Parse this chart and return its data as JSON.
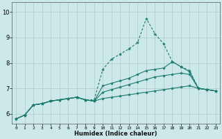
{
  "bg_color": "#cce8e8",
  "grid_color": "#aacccc",
  "line_color": "#1a7a6e",
  "xlabel": "Humidex (Indice chaleur)",
  "xlim": [
    -0.5,
    23.5
  ],
  "ylim": [
    5.6,
    10.4
  ],
  "xticks": [
    0,
    1,
    2,
    3,
    4,
    5,
    6,
    7,
    8,
    9,
    10,
    11,
    12,
    13,
    14,
    15,
    16,
    17,
    18,
    19,
    20,
    21,
    22,
    23
  ],
  "yticks": [
    6,
    7,
    8,
    9,
    10
  ],
  "series": [
    {
      "x": [
        0,
        1,
        2,
        3,
        4,
        5,
        6,
        7,
        8,
        9,
        10,
        11,
        12,
        13,
        14,
        15,
        16,
        17,
        18,
        19,
        20,
        21,
        22,
        23
      ],
      "y": [
        5.8,
        5.95,
        6.35,
        6.4,
        6.5,
        6.55,
        6.6,
        6.65,
        6.55,
        6.55,
        7.75,
        8.15,
        8.35,
        8.55,
        8.8,
        9.75,
        9.15,
        8.75,
        8.05,
        7.85,
        7.7,
        7.0,
        6.95,
        6.9
      ],
      "linestyle": "--"
    },
    {
      "x": [
        0,
        1,
        2,
        3,
        4,
        5,
        6,
        7,
        8,
        9,
        10,
        11,
        12,
        13,
        14,
        15,
        16,
        17,
        18,
        19,
        20,
        21,
        22,
        23
      ],
      "y": [
        5.8,
        5.95,
        6.35,
        6.4,
        6.5,
        6.55,
        6.6,
        6.65,
        6.55,
        6.5,
        7.1,
        7.2,
        7.3,
        7.4,
        7.55,
        7.7,
        7.75,
        7.8,
        8.05,
        7.85,
        7.65,
        7.0,
        6.95,
        6.9
      ],
      "linestyle": "-"
    },
    {
      "x": [
        0,
        1,
        2,
        3,
        4,
        5,
        6,
        7,
        8,
        9,
        10,
        11,
        12,
        13,
        14,
        15,
        16,
        17,
        18,
        19,
        20,
        21,
        22,
        23
      ],
      "y": [
        5.8,
        5.95,
        6.35,
        6.4,
        6.5,
        6.55,
        6.6,
        6.65,
        6.55,
        6.5,
        6.85,
        6.95,
        7.05,
        7.15,
        7.25,
        7.35,
        7.45,
        7.5,
        7.55,
        7.6,
        7.55,
        7.0,
        6.95,
        6.9
      ],
      "linestyle": "-"
    },
    {
      "x": [
        0,
        1,
        2,
        3,
        4,
        5,
        6,
        7,
        8,
        9,
        10,
        11,
        12,
        13,
        14,
        15,
        16,
        17,
        18,
        19,
        20,
        21,
        22,
        23
      ],
      "y": [
        5.8,
        5.95,
        6.35,
        6.4,
        6.5,
        6.55,
        6.6,
        6.65,
        6.55,
        6.5,
        6.6,
        6.65,
        6.7,
        6.75,
        6.8,
        6.85,
        6.9,
        6.95,
        7.0,
        7.05,
        7.1,
        7.0,
        6.95,
        6.9
      ],
      "linestyle": "-"
    }
  ]
}
